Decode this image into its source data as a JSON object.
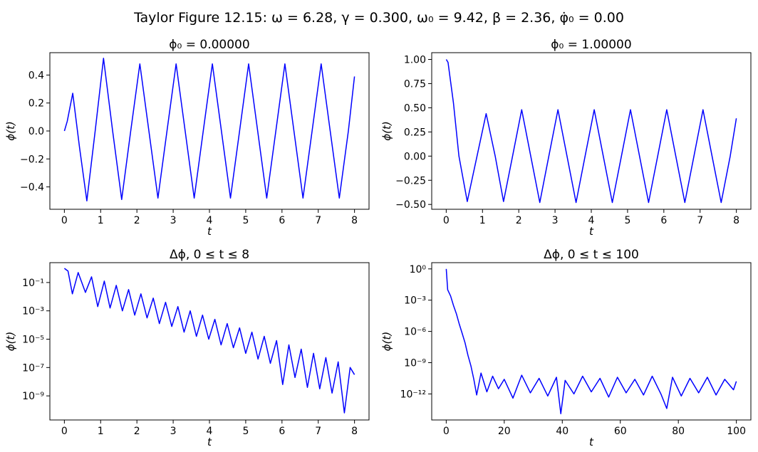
{
  "figure": {
    "suptitle": "Taylor Figure 12.15:   ω = 6.28,  γ = 0.300,  ω₀ = 9.42,  β = 2.36,  φ̇₀ = 0.00"
  },
  "chart_data": [
    {
      "type": "line",
      "title": "ϕ₀ = 0.00000",
      "xlabel": "t",
      "ylabel": "ϕ(t)",
      "yscale": "linear",
      "xlim": [
        -0.4,
        8.4
      ],
      "ylim": [
        -0.56,
        0.56
      ],
      "xticks": [
        0,
        1,
        2,
        3,
        4,
        5,
        6,
        7,
        8
      ],
      "xtick_labels": [
        "0",
        "1",
        "2",
        "3",
        "4",
        "5",
        "6",
        "7",
        "8"
      ],
      "yticks": [
        -0.4,
        -0.2,
        0.0,
        0.2,
        0.4
      ],
      "ytick_labels": [
        "−0.4",
        "−0.2",
        "0.0",
        "0.2",
        "0.4"
      ],
      "grid": false,
      "series": [
        {
          "color": "#0000ff",
          "x": [
            0.0,
            0.08,
            0.23,
            0.42,
            0.62,
            0.85,
            1.08,
            1.33,
            1.58,
            1.83,
            2.08,
            2.33,
            2.58,
            2.83,
            3.08,
            3.33,
            3.58,
            3.83,
            4.08,
            4.33,
            4.58,
            4.83,
            5.08,
            5.33,
            5.58,
            5.83,
            6.08,
            6.33,
            6.58,
            6.83,
            7.08,
            7.33,
            7.58,
            7.83,
            8.0
          ],
          "y": [
            0.0,
            0.07,
            0.27,
            -0.12,
            -0.5,
            0.0,
            0.52,
            0.0,
            -0.49,
            0.0,
            0.48,
            0.0,
            -0.48,
            0.0,
            0.48,
            0.0,
            -0.48,
            0.0,
            0.48,
            0.0,
            -0.48,
            0.0,
            0.48,
            0.0,
            -0.48,
            0.0,
            0.48,
            0.0,
            -0.48,
            0.0,
            0.48,
            0.0,
            -0.48,
            0.0,
            0.39
          ]
        }
      ]
    },
    {
      "type": "line",
      "title": "ϕ₀ = 1.00000",
      "xlabel": "t",
      "ylabel": "ϕ(t)",
      "yscale": "linear",
      "xlim": [
        -0.4,
        8.4
      ],
      "ylim": [
        -0.55,
        1.07
      ],
      "xticks": [
        0,
        1,
        2,
        3,
        4,
        5,
        6,
        7,
        8
      ],
      "xtick_labels": [
        "0",
        "1",
        "2",
        "3",
        "4",
        "5",
        "6",
        "7",
        "8"
      ],
      "yticks": [
        -0.5,
        -0.25,
        0.0,
        0.25,
        0.5,
        0.75,
        1.0
      ],
      "ytick_labels": [
        "−0.50",
        "−0.25",
        "0.00",
        "0.25",
        "0.50",
        "0.75",
        "1.00"
      ],
      "grid": false,
      "series": [
        {
          "color": "#0000ff",
          "x": [
            0.0,
            0.05,
            0.2,
            0.35,
            0.58,
            0.85,
            1.1,
            1.35,
            1.58,
            1.83,
            2.08,
            2.33,
            2.58,
            2.83,
            3.08,
            3.33,
            3.58,
            3.83,
            4.08,
            4.33,
            4.58,
            4.83,
            5.08,
            5.33,
            5.58,
            5.83,
            6.08,
            6.33,
            6.58,
            6.83,
            7.08,
            7.33,
            7.58,
            7.83,
            8.0
          ],
          "y": [
            1.0,
            0.97,
            0.55,
            0.0,
            -0.47,
            0.0,
            0.44,
            0.0,
            -0.47,
            0.0,
            0.48,
            0.0,
            -0.48,
            0.0,
            0.48,
            0.0,
            -0.48,
            0.0,
            0.48,
            0.0,
            -0.48,
            0.0,
            0.48,
            0.0,
            -0.48,
            0.0,
            0.48,
            0.0,
            -0.48,
            0.0,
            0.48,
            0.0,
            -0.48,
            0.0,
            0.39
          ]
        }
      ]
    },
    {
      "type": "line",
      "title": "Δϕ, 0 ≤ t ≤ 8",
      "xlabel": "t",
      "ylabel": "ϕ(t)",
      "yscale": "log",
      "xlim": [
        -0.4,
        8.4
      ],
      "ylim_log10": [
        -10.7,
        0.4
      ],
      "xticks": [
        0,
        1,
        2,
        3,
        4,
        5,
        6,
        7,
        8
      ],
      "xtick_labels": [
        "0",
        "1",
        "2",
        "3",
        "4",
        "5",
        "6",
        "7",
        "8"
      ],
      "yticks_log10": [
        -9,
        -7,
        -5,
        -3,
        -1
      ],
      "ytick_labels": [
        "10⁻⁹",
        "10⁻⁷",
        "10⁻⁵",
        "10⁻³",
        "10⁻¹"
      ],
      "grid": false,
      "series": [
        {
          "color": "#0000ff",
          "x": [
            0.0,
            0.1,
            0.22,
            0.38,
            0.58,
            0.75,
            0.92,
            1.1,
            1.26,
            1.43,
            1.6,
            1.77,
            1.94,
            2.11,
            2.28,
            2.45,
            2.62,
            2.79,
            2.96,
            3.13,
            3.3,
            3.47,
            3.64,
            3.81,
            3.98,
            4.15,
            4.32,
            4.49,
            4.66,
            4.83,
            5.0,
            5.17,
            5.34,
            5.51,
            5.68,
            5.85,
            6.02,
            6.19,
            6.36,
            6.53,
            6.7,
            6.87,
            7.04,
            7.21,
            7.38,
            7.55,
            7.72,
            7.88,
            8.0
          ],
          "logy": [
            0.0,
            -0.2,
            -1.8,
            -0.3,
            -1.7,
            -0.6,
            -2.7,
            -0.9,
            -2.8,
            -1.2,
            -3.0,
            -1.5,
            -3.3,
            -1.8,
            -3.5,
            -2.1,
            -3.9,
            -2.4,
            -4.1,
            -2.7,
            -4.5,
            -3.0,
            -4.8,
            -3.3,
            -5.0,
            -3.6,
            -5.4,
            -3.9,
            -5.6,
            -4.2,
            -6.0,
            -4.5,
            -6.4,
            -4.8,
            -6.7,
            -5.1,
            -8.2,
            -5.4,
            -7.7,
            -5.7,
            -8.4,
            -6.0,
            -8.5,
            -6.3,
            -8.8,
            -6.6,
            -10.2,
            -7.0,
            -7.5
          ]
        }
      ]
    },
    {
      "type": "line",
      "title": "Δϕ, 0 ≤ t ≤ 100",
      "xlabel": "t",
      "ylabel": "ϕ(t)",
      "yscale": "log",
      "xlim": [
        -5,
        105
      ],
      "ylim_log10": [
        -14.5,
        0.6
      ],
      "xticks": [
        0,
        20,
        40,
        60,
        80,
        100
      ],
      "xtick_labels": [
        "0",
        "20",
        "40",
        "60",
        "80",
        "100"
      ],
      "yticks_log10": [
        -12,
        -9,
        -6,
        -3,
        0
      ],
      "ytick_labels": [
        "10⁻¹²",
        "10⁻⁹",
        "10⁻⁶",
        "10⁻³",
        "10⁰"
      ],
      "grid": false,
      "series": [
        {
          "color": "#0000ff",
          "x": [
            0.0,
            0.5,
            1.5,
            2.5,
            3.5,
            4.5,
            5.5,
            6.5,
            7.5,
            8.5,
            9.5,
            10.5,
            12,
            14,
            16,
            18,
            20,
            23,
            26,
            29,
            32,
            35,
            38,
            39.5,
            41,
            44,
            47,
            50,
            53,
            56,
            59,
            62,
            65,
            68,
            71,
            74,
            76,
            78,
            81,
            84,
            87,
            90,
            93,
            96,
            99,
            100
          ],
          "logy": [
            0.0,
            -2.0,
            -2.6,
            -3.5,
            -4.3,
            -5.3,
            -6.2,
            -7.1,
            -8.3,
            -9.3,
            -10.6,
            -12.1,
            -10.0,
            -11.8,
            -10.3,
            -11.5,
            -10.6,
            -12.4,
            -10.2,
            -11.9,
            -10.5,
            -12.2,
            -10.4,
            -13.9,
            -10.7,
            -12.0,
            -10.3,
            -11.8,
            -10.5,
            -12.3,
            -10.4,
            -11.9,
            -10.6,
            -12.1,
            -10.3,
            -12.0,
            -13.4,
            -10.4,
            -12.2,
            -10.5,
            -11.9,
            -10.4,
            -12.1,
            -10.6,
            -11.6,
            -10.8
          ]
        }
      ]
    }
  ]
}
